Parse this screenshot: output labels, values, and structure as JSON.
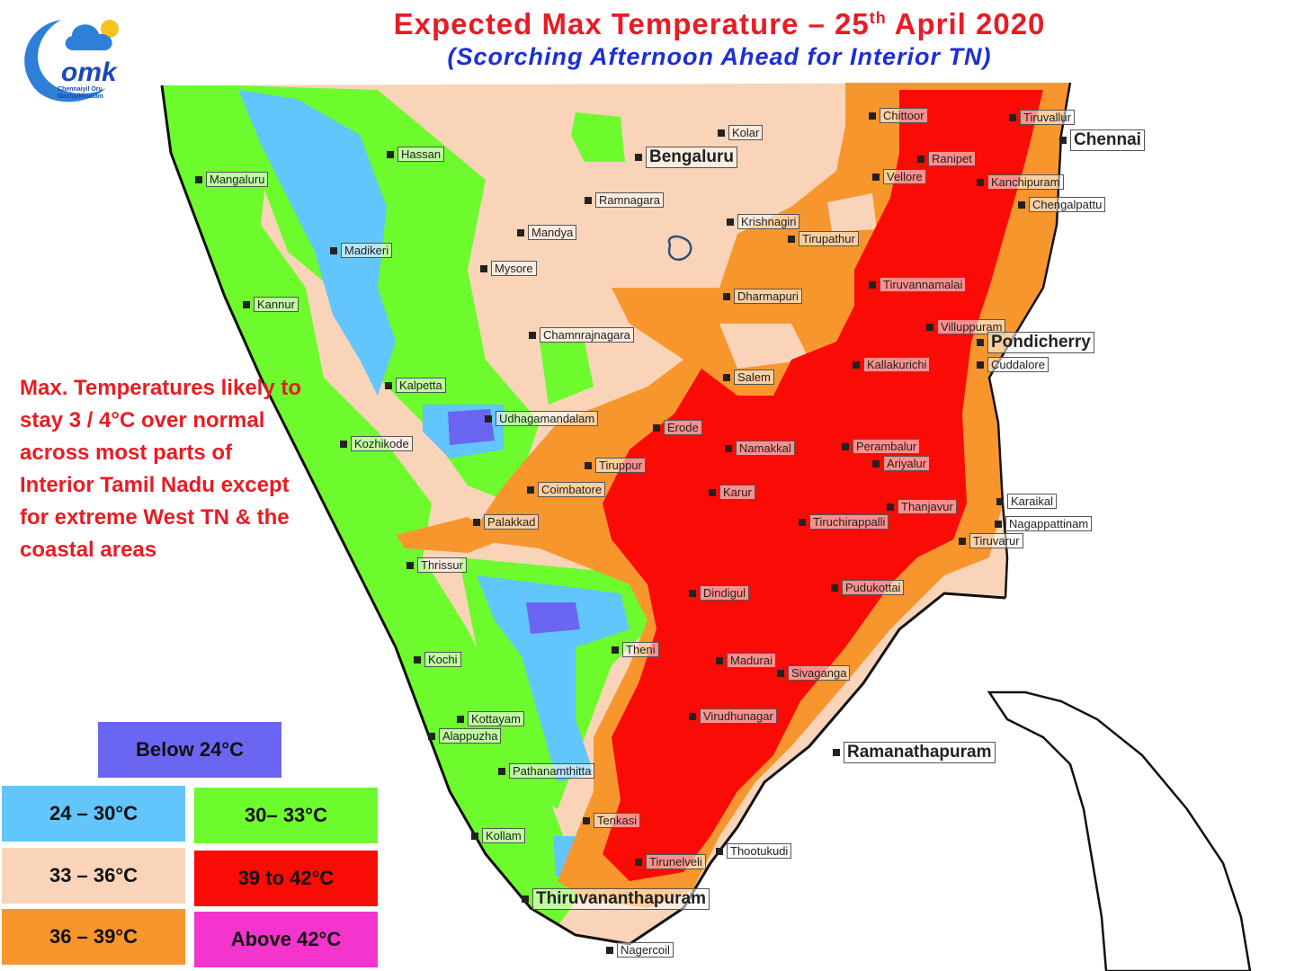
{
  "title": {
    "main": "Expected Max Temperature – 25",
    "sup": "th",
    "main_tail": " April 2020",
    "sub": "(Scorching Afternoon Ahead for Interior TN)"
  },
  "logo": {
    "line1": "Chennaiyil Oru",
    "line2": "Mazhaikkaalam",
    "icon": "cloud-sun-logo-icon"
  },
  "note": "Max. Temperatures likely to stay 3 / 4°C over normal across most parts of Interior Tamil Nadu except for extreme West TN & the coastal areas",
  "legend": [
    {
      "label": "Below 24°C",
      "color": "#6b66f2"
    },
    {
      "label": "24 – 30°C",
      "color": "#62c5fb"
    },
    {
      "label": "30– 33°C",
      "color": "#6dfb2e"
    },
    {
      "label": "33 – 36°C",
      "color": "#f9d4b8"
    },
    {
      "label": "39 to 42°C",
      "color": "#fb0b06"
    },
    {
      "label": "36 – 39°C",
      "color": "#f8962e"
    },
    {
      "label": "Above 42°C",
      "color": "#f334cd"
    }
  ],
  "cities": [
    "Mangaluru",
    "Hassan",
    "Kolar",
    "Bengaluru",
    "Chittoor",
    "Tiruvallur",
    "Chennai",
    "Ranipet",
    "Vellore",
    "Kanchipuram",
    "Chengalpattu",
    "Ramnagara",
    "Krishnagiri",
    "Tirupathur",
    "Madikeri",
    "Mandya",
    "Mysore",
    "Kannur",
    "Dharmapuri",
    "Tiruvannamalai",
    "Villuppuram",
    "Pondicherry",
    "Chamnrajnagara",
    "Salem",
    "Kallakurichi",
    "Cuddalore",
    "Kalpetta",
    "Udhagamandalam",
    "Erode",
    "Namakkal",
    "Perambalur",
    "Ariyalur",
    "Kozhikode",
    "Tiruppur",
    "Coimbatore",
    "Karur",
    "Thanjavur",
    "Karaikal",
    "Palakkad",
    "Tiruchirappalli",
    "Nagappattinam",
    "Tiruvarur",
    "Thrissur",
    "Dindigul",
    "Pudukottai",
    "Kochi",
    "Theni",
    "Madurai",
    "Sivaganga",
    "Virudhunagar",
    "Kottayam",
    "Alappuzha",
    "Ramanathapuram",
    "Pathanamthitta",
    "Tenkasi",
    "Kollam",
    "Thootukudi",
    "Tirunelveli",
    "Thiruvananthapuram",
    "Nagercoil"
  ]
}
